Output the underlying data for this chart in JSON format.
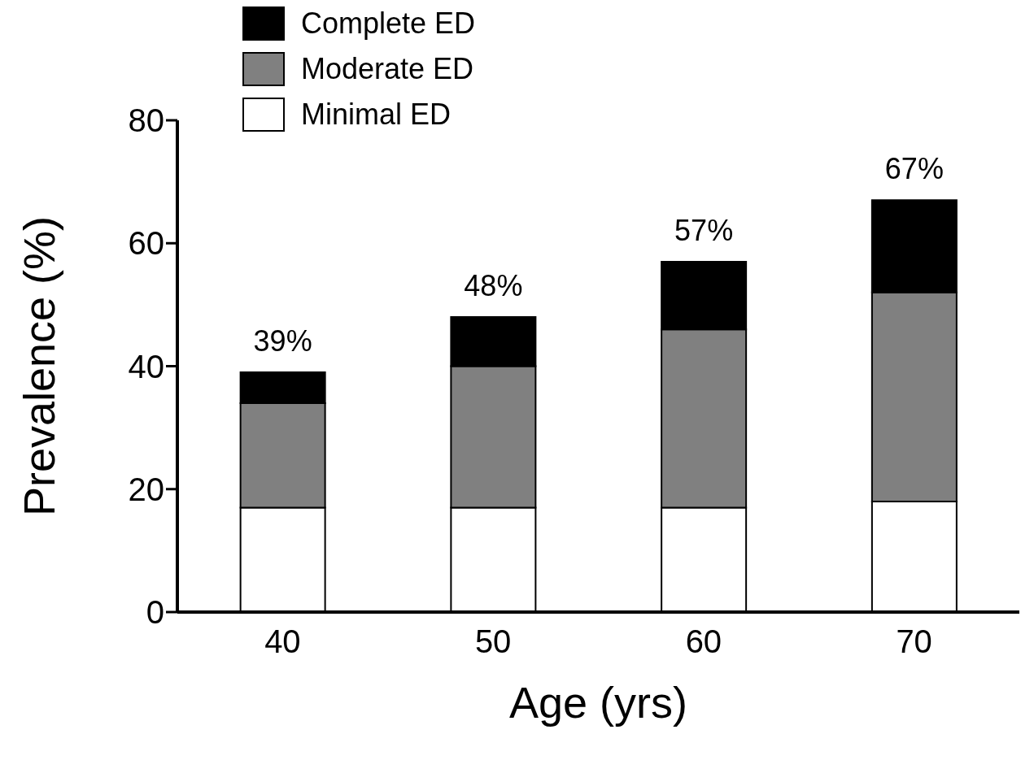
{
  "chart_data": {
    "type": "bar",
    "stacked": true,
    "xlabel": "Age (yrs)",
    "ylabel": "Prevalence (%)",
    "categories": [
      "40",
      "50",
      "60",
      "70"
    ],
    "series": [
      {
        "name": "Minimal ED",
        "color": "#ffffff",
        "values": [
          17,
          17,
          17,
          18
        ]
      },
      {
        "name": "Moderate ED",
        "color": "#808080",
        "values": [
          17,
          23,
          29,
          34
        ]
      },
      {
        "name": "Complete ED",
        "color": "#000000",
        "values": [
          5,
          8,
          11,
          15
        ]
      }
    ],
    "totals": [
      "39%",
      "48%",
      "57%",
      "67%"
    ],
    "ylim": [
      0,
      80
    ],
    "yticks": [
      0,
      20,
      40,
      60,
      80
    ],
    "grid": false,
    "legend": "top left"
  }
}
